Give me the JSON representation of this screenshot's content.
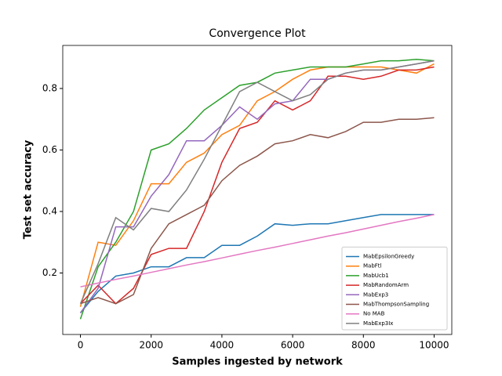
{
  "chart_data": {
    "type": "line",
    "title": "Convergence Plot",
    "xlabel": "Samples ingested by network",
    "ylabel": "Test set accuracy",
    "x": [
      0,
      500,
      1000,
      1500,
      2000,
      2500,
      3000,
      3500,
      4000,
      4500,
      5000,
      5500,
      6000,
      6500,
      7000,
      7500,
      8000,
      8500,
      9000,
      9500,
      10000
    ],
    "xlim": [
      -500,
      10500
    ],
    "ylim": [
      0.0,
      0.94
    ],
    "xticks": [
      0,
      2000,
      4000,
      6000,
      8000,
      10000
    ],
    "yticks": [
      0.2,
      0.4,
      0.6,
      0.8
    ],
    "grid": false,
    "legend": "lower right",
    "series": [
      {
        "name": "MabEpsilonGreedy",
        "color": "#1f77b4",
        "values": [
          0.07,
          0.14,
          0.19,
          0.2,
          0.22,
          0.22,
          0.25,
          0.25,
          0.29,
          0.29,
          0.32,
          0.36,
          0.355,
          0.36,
          0.36,
          0.37,
          0.38,
          0.39,
          0.39,
          0.39,
          0.39
        ]
      },
      {
        "name": "MabFtl",
        "color": "#ff7f0e",
        "values": [
          0.09,
          0.3,
          0.29,
          0.37,
          0.49,
          0.49,
          0.56,
          0.59,
          0.65,
          0.68,
          0.76,
          0.79,
          0.83,
          0.86,
          0.87,
          0.87,
          0.87,
          0.87,
          0.86,
          0.85,
          0.88
        ]
      },
      {
        "name": "MabUcb1",
        "color": "#2ca02c",
        "values": [
          0.05,
          0.22,
          0.3,
          0.4,
          0.6,
          0.62,
          0.67,
          0.73,
          0.77,
          0.81,
          0.82,
          0.85,
          0.86,
          0.87,
          0.87,
          0.87,
          0.88,
          0.89,
          0.89,
          0.895,
          0.89
        ]
      },
      {
        "name": "MabRandomArm",
        "color": "#d62728",
        "values": [
          0.1,
          0.16,
          0.1,
          0.15,
          0.26,
          0.28,
          0.28,
          0.4,
          0.56,
          0.67,
          0.69,
          0.76,
          0.73,
          0.76,
          0.84,
          0.84,
          0.83,
          0.84,
          0.86,
          0.86,
          0.87
        ]
      },
      {
        "name": "MabExp3",
        "color": "#9467bd",
        "values": [
          0.07,
          0.15,
          0.35,
          0.35,
          0.45,
          0.52,
          0.63,
          0.63,
          0.68,
          0.74,
          0.7,
          0.75,
          0.76,
          0.83,
          0.83,
          0.85,
          0.86,
          0.86,
          0.87,
          0.88,
          0.89
        ]
      },
      {
        "name": "MabThompsonSampling",
        "color": "#8c564b",
        "values": [
          0.1,
          0.12,
          0.1,
          0.13,
          0.28,
          0.36,
          0.39,
          0.42,
          0.5,
          0.55,
          0.58,
          0.62,
          0.63,
          0.65,
          0.64,
          0.66,
          0.69,
          0.69,
          0.7,
          0.7,
          0.705
        ]
      },
      {
        "name": "No MAB",
        "color": "#e377c2",
        "values": [
          0.155,
          0.167,
          0.179,
          0.19,
          0.202,
          0.214,
          0.226,
          0.237,
          0.249,
          0.261,
          0.273,
          0.284,
          0.296,
          0.308,
          0.32,
          0.331,
          0.343,
          0.355,
          0.367,
          0.378,
          0.39
        ]
      },
      {
        "name": "MabExp3Ix",
        "color": "#7f7f7f",
        "values": [
          0.1,
          0.23,
          0.38,
          0.34,
          0.41,
          0.4,
          0.47,
          0.57,
          0.68,
          0.79,
          0.82,
          0.79,
          0.76,
          0.78,
          0.83,
          0.85,
          0.86,
          0.86,
          0.87,
          0.88,
          0.89
        ]
      }
    ]
  }
}
